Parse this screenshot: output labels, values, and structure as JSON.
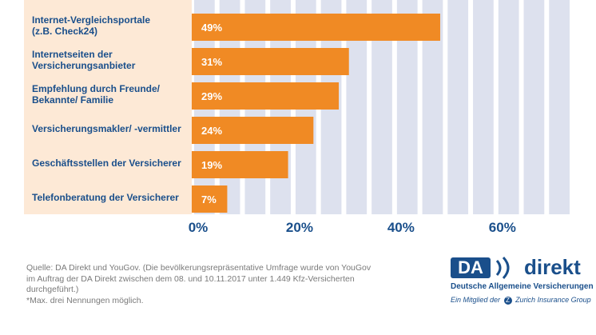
{
  "chart_data": {
    "type": "bar",
    "orientation": "horizontal",
    "categories": [
      "Internet-Vergleichsportale\n(z.B. Check24)",
      "Internetseiten der\nVersicherungsanbieter",
      "Empfehlung durch Freunde/\nBekannte/ Familie",
      "Versicherungsmakler/ -vermittler",
      "Geschäftsstellen der Versicherer",
      "Telefonberatung der Versicherer"
    ],
    "values": [
      49,
      31,
      29,
      24,
      19,
      7
    ],
    "value_labels": [
      "49%",
      "31%",
      "29%",
      "24%",
      "19%",
      "7%"
    ],
    "xlim": [
      0,
      75
    ],
    "ticks": [
      0,
      20,
      40,
      60
    ],
    "tick_labels": [
      "0%",
      "20%",
      "40%",
      "60%"
    ],
    "colors": {
      "bar": "#f08a24",
      "label_panel": "#fde9d6",
      "grid_stripe": "#dde1ee",
      "text": "#1a4f8b",
      "value_text": "#ffffff"
    }
  },
  "footer": {
    "source": "Quelle: DA Direkt und YouGov. (Die bevölkerungsrepräsentative Umfrage wurde von YouGov im Auftrag der DA Direkt zwischen dem 08. und 10.11.2017 unter 1.449 Kfz-Versicherten durchgeführt.)",
    "note": "*Max. drei Nennungen möglich."
  },
  "logo": {
    "box_text": "DA",
    "word": "direkt",
    "subtitle": "Deutsche Allgemeine Versicherungen",
    "member_prefix": "Ein Mitglied der",
    "member_z": "Z",
    "member_suffix": "Zurich Insurance Group"
  }
}
